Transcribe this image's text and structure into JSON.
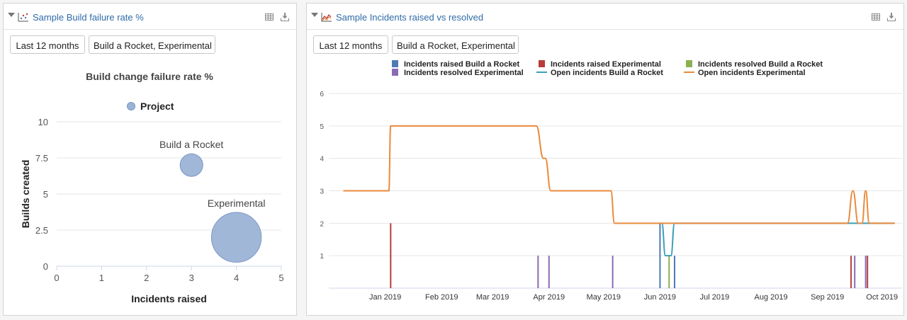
{
  "panels": [
    {
      "title": "Sample Build failure rate %",
      "buttons": [
        "Last 12 months",
        "Build a Rocket, Experimental"
      ]
    },
    {
      "title": "Sample Incidents raised vs resolved",
      "buttons": [
        "Last 12 months",
        "Build a Rocket, Experimental"
      ]
    }
  ],
  "colors": {
    "link": "#2f6ba8",
    "bubble": "#9cb3d6",
    "raised_rocket": "#4e79b5",
    "raised_experimental": "#b83c3c",
    "resolved_rocket": "#8db04f",
    "resolved_experimental": "#8a6bb3",
    "open_rocket": "#3a9fb8",
    "open_experimental": "#ea8a3c"
  },
  "chart_data": [
    {
      "type": "scatter",
      "title": "Build change failure rate %",
      "xlabel": "Incidents raised",
      "ylabel": "Builds created",
      "xlim": [
        0,
        5
      ],
      "ylim": [
        0,
        10
      ],
      "xticks": [
        "0",
        "1",
        "2",
        "3",
        "4",
        "5"
      ],
      "yticks": [
        "0",
        "2.5",
        "5",
        "7.5",
        "10"
      ],
      "legend": [
        "Project"
      ],
      "legend_position": "top-center",
      "series": [
        {
          "name": "Project",
          "points": [
            {
              "label": "Build a Rocket",
              "x": 3,
              "y": 7,
              "size": 1
            },
            {
              "label": "Experimental",
              "x": 4,
              "y": 2,
              "size": 2.2
            }
          ]
        }
      ]
    },
    {
      "type": "line",
      "ylim": [
        0,
        6
      ],
      "yticks": [
        "1",
        "2",
        "3",
        "4",
        "5",
        "6"
      ],
      "xticks": [
        "Jan 2019",
        "Feb 2019",
        "Mar 2019",
        "Apr 2019",
        "May 2019",
        "Jun 2019",
        "Jul 2019",
        "Aug 2019",
        "Sep 2019",
        "Oct 2019"
      ],
      "xlim": [
        "2018-12-01",
        "2019-10-12"
      ],
      "legend_position": "top",
      "legend": [
        "Incidents raised Build a Rocket",
        "Incidents raised Experimental",
        "Incidents resolved Build a Rocket",
        "Incidents resolved Experimental",
        "Open incidents Build a Rocket",
        "Open incidents Experimental"
      ],
      "series": [
        {
          "name": "Incidents raised Build a Rocket",
          "kind": "bar",
          "points": [
            [
              "2019-06-01",
              2
            ],
            [
              "2019-06-09",
              1
            ]
          ]
        },
        {
          "name": "Incidents raised Experimental",
          "kind": "bar",
          "points": [
            [
              "2019-01-04",
              2
            ],
            [
              "2019-09-14",
              1
            ],
            [
              "2019-09-23",
              1
            ]
          ]
        },
        {
          "name": "Incidents resolved Build a Rocket",
          "kind": "bar",
          "points": [
            [
              "2019-06-06",
              1
            ]
          ]
        },
        {
          "name": "Incidents resolved Experimental",
          "kind": "bar",
          "points": [
            [
              "2019-03-26",
              1
            ],
            [
              "2019-04-01",
              1
            ],
            [
              "2019-05-06",
              1
            ],
            [
              "2019-09-16",
              1
            ],
            [
              "2019-09-22",
              1
            ]
          ]
        },
        {
          "name": "Open incidents Build a Rocket",
          "kind": "line",
          "points": [
            [
              "2019-06-02",
              2
            ],
            [
              "2019-06-04",
              1
            ],
            [
              "2019-06-07",
              1
            ],
            [
              "2019-06-09",
              2
            ],
            [
              "2019-09-10",
              2
            ],
            [
              "2019-10-08",
              2
            ]
          ]
        },
        {
          "name": "Open incidents Experimental",
          "kind": "line",
          "points": [
            [
              "2018-12-09",
              3
            ],
            [
              "2019-01-03",
              3
            ],
            [
              "2019-01-04",
              5
            ],
            [
              "2019-03-25",
              5
            ],
            [
              "2019-03-29",
              4
            ],
            [
              "2019-03-30",
              4
            ],
            [
              "2019-04-02",
              3
            ],
            [
              "2019-05-05",
              3
            ],
            [
              "2019-05-07",
              2
            ],
            [
              "2019-09-12",
              2
            ],
            [
              "2019-09-15",
              3
            ],
            [
              "2019-09-18",
              2
            ],
            [
              "2019-09-20",
              2
            ],
            [
              "2019-09-22",
              3
            ],
            [
              "2019-09-24",
              2
            ],
            [
              "2019-10-08",
              2
            ]
          ]
        }
      ]
    }
  ]
}
